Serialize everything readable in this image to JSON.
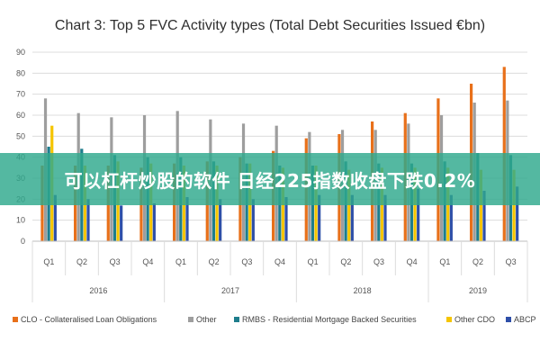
{
  "chart_data": {
    "type": "bar",
    "title": "Chart 3: Top 5 FVC Activity types (Total Debt Securities Issued €bn)",
    "ylim": [
      0,
      90
    ],
    "yticks": [
      0,
      10,
      20,
      30,
      40,
      50,
      60,
      70,
      80,
      90
    ],
    "grid": true,
    "legend_position": "bottom",
    "categories": [
      "Q1",
      "Q2",
      "Q3",
      "Q4",
      "Q1",
      "Q2",
      "Q3",
      "Q4",
      "Q1",
      "Q2",
      "Q3",
      "Q4",
      "Q1",
      "Q2",
      "Q3"
    ],
    "years": [
      {
        "label": "2016",
        "count": 4
      },
      {
        "label": "2017",
        "count": 4
      },
      {
        "label": "2018",
        "count": 4
      },
      {
        "label": "2019",
        "count": 3
      }
    ],
    "series": [
      {
        "name": "CLO - Collateralised Loan Obligations",
        "color": "#e8701a",
        "values": [
          36,
          36,
          36,
          35,
          37,
          38,
          40,
          43,
          49,
          51,
          57,
          61,
          68,
          75,
          83
        ]
      },
      {
        "name": "Other",
        "color": "#9e9e9e",
        "values": [
          68,
          61,
          59,
          60,
          62,
          58,
          56,
          55,
          52,
          53,
          53,
          56,
          60,
          66,
          67
        ]
      },
      {
        "name": "RMBS - Residential Mortgage Backed Securities",
        "color": "#1e7d8c",
        "values": [
          45,
          44,
          41,
          40,
          40,
          38,
          37,
          36,
          36,
          38,
          37,
          37,
          38,
          42,
          41
        ]
      },
      {
        "name": "Other CDO",
        "color": "#f5c500",
        "values": [
          55,
          36,
          38,
          37,
          36,
          36,
          37,
          35,
          36,
          34,
          35,
          35,
          35,
          34,
          34
        ]
      },
      {
        "name": "ABCP",
        "color": "#2e4fa8",
        "values": [
          22,
          20,
          17,
          18,
          21,
          20,
          20,
          21,
          22,
          22,
          22,
          25,
          22,
          24,
          26
        ]
      }
    ]
  },
  "overlay": {
    "banner_text": "可以杠杆炒股的软件 日经225指数收盘下跌0.2%"
  }
}
